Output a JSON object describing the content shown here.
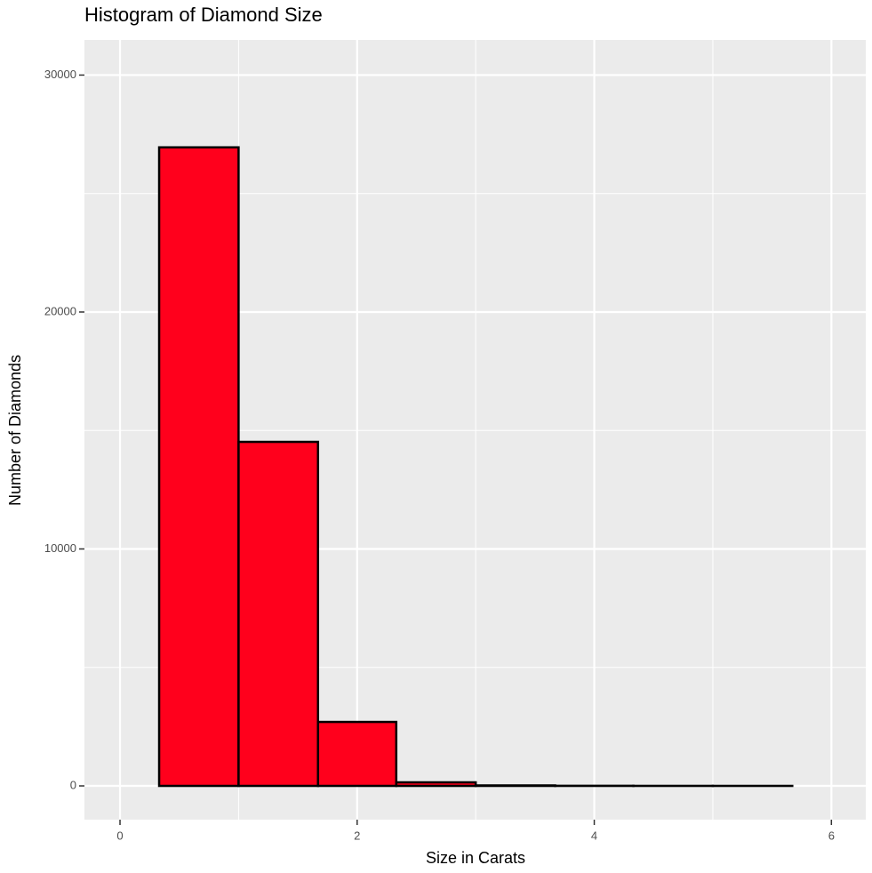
{
  "chart_data": {
    "type": "histogram",
    "title": "Histogram of Diamond Size",
    "x_label": "Size in Carats",
    "y_label": "Number of Diamonds",
    "bins": [
      0.33,
      1.0,
      1.67,
      2.33,
      3.0,
      3.67,
      4.33,
      5.0,
      5.67
    ],
    "values": [
      26950,
      14520,
      2700,
      150,
      20,
      5,
      2,
      1
    ],
    "color": "#ff001c",
    "edge_color": "#000000",
    "xlim": [
      -0.3,
      6.29
    ],
    "xticks": [
      0,
      2,
      4,
      6
    ],
    "x_minor_grid": [
      1,
      3,
      5
    ],
    "ylim": [
      -1425,
      31480
    ],
    "yticks": [
      0,
      10000,
      20000,
      30000
    ],
    "y_minor_grid": [
      5000,
      15000,
      25000
    ],
    "grid": true
  }
}
